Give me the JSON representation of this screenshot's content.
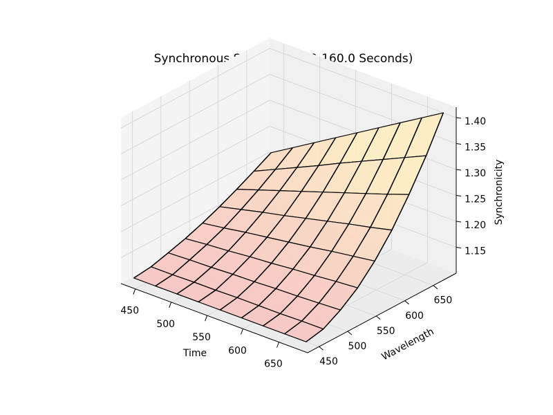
{
  "chart_data": {
    "type": "surface3d",
    "title": "Synchronous Spectrum (0.0-160.0 Seconds)",
    "x_label": "Time",
    "y_label": "Wavelength",
    "z_label": "Synchronicity",
    "x": [
      440,
      470,
      500,
      530,
      560,
      590,
      620,
      650,
      680
    ],
    "y": [
      440,
      470,
      500,
      530,
      560,
      590,
      620,
      650,
      680
    ],
    "z": [
      [
        1.11,
        1.114,
        1.123,
        1.133,
        1.145,
        1.159,
        1.175,
        1.192,
        1.21
      ],
      [
        1.11,
        1.114,
        1.125,
        1.137,
        1.151,
        1.169,
        1.189,
        1.211,
        1.235
      ],
      [
        1.11,
        1.115,
        1.126,
        1.14,
        1.158,
        1.179,
        1.203,
        1.23,
        1.26
      ],
      [
        1.11,
        1.115,
        1.128,
        1.144,
        1.164,
        1.188,
        1.217,
        1.249,
        1.285
      ],
      [
        1.11,
        1.116,
        1.129,
        1.147,
        1.17,
        1.198,
        1.231,
        1.269,
        1.31
      ],
      [
        1.11,
        1.116,
        1.131,
        1.151,
        1.176,
        1.208,
        1.245,
        1.288,
        1.335
      ],
      [
        1.11,
        1.116,
        1.132,
        1.154,
        1.183,
        1.218,
        1.259,
        1.307,
        1.36
      ],
      [
        1.11,
        1.117,
        1.134,
        1.158,
        1.189,
        1.227,
        1.273,
        1.326,
        1.385
      ],
      [
        1.11,
        1.117,
        1.136,
        1.161,
        1.195,
        1.237,
        1.288,
        1.345,
        1.41
      ]
    ],
    "xlim": [
      430,
      690
    ],
    "ylim": [
      430,
      690
    ],
    "zlim": [
      1.1,
      1.42
    ],
    "xticks": [
      450,
      500,
      550,
      600,
      650
    ],
    "yticks": [
      450,
      500,
      550,
      600,
      650
    ],
    "zticks": [
      1.15,
      {
        "value": 1.2,
        "label": "1.20"
      },
      1.25,
      {
        "value": 1.3,
        "label": "1.30"
      },
      1.35,
      {
        "value": 1.4,
        "label": "1.40"
      }
    ],
    "colormap": [
      "#f8c2c2",
      "#fdecc0"
    ],
    "line_color": "#000000",
    "grid": true
  }
}
